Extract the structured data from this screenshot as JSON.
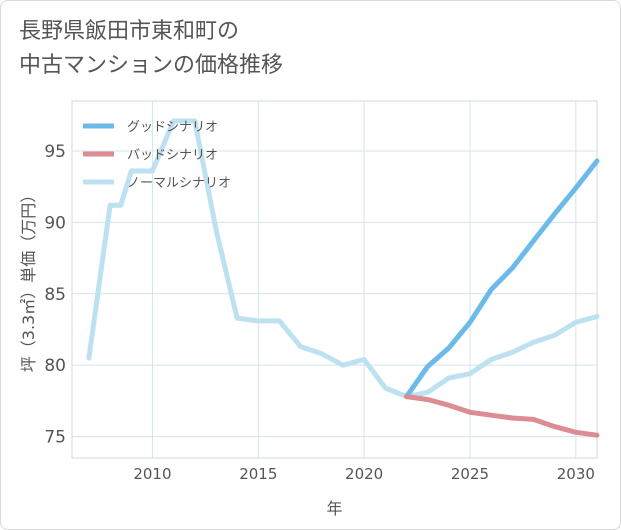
{
  "title_lines": [
    "長野県飯田市東和町の",
    "中古マンションの価格推移"
  ],
  "chart_data": {
    "type": "line",
    "xlabel": "年",
    "ylabel": "坪（3.3㎡）単価（万円）",
    "xlim": [
      2006.2,
      2031
    ],
    "ylim": [
      73.5,
      98.5
    ],
    "xticks": [
      2010,
      2015,
      2020,
      2025,
      2030
    ],
    "yticks": [
      75,
      80,
      85,
      90,
      95
    ],
    "grid": true,
    "legend_position": "top-left",
    "series": [
      {
        "name": "グッドシナリオ",
        "color": "#6bbaea",
        "width": 5,
        "points": [
          [
            2022,
            77.8
          ],
          [
            2023,
            79.9
          ],
          [
            2024,
            81.2
          ],
          [
            2025,
            83.0
          ],
          [
            2026,
            85.3
          ],
          [
            2027,
            86.8
          ],
          [
            2028,
            88.7
          ],
          [
            2029,
            90.6
          ],
          [
            2030,
            92.4
          ],
          [
            2031,
            94.3
          ]
        ]
      },
      {
        "name": "バッドシナリオ",
        "color": "#dd8c93",
        "width": 5,
        "points": [
          [
            2022,
            77.8
          ],
          [
            2023,
            77.6
          ],
          [
            2024,
            77.2
          ],
          [
            2025,
            76.7
          ],
          [
            2026,
            76.5
          ],
          [
            2027,
            76.3
          ],
          [
            2028,
            76.2
          ],
          [
            2029,
            75.7
          ],
          [
            2030,
            75.3
          ],
          [
            2031,
            75.1
          ]
        ]
      },
      {
        "name": "ノーマルシナリオ",
        "color": "#bde1f0",
        "width": 5,
        "points": [
          [
            2007,
            80.5
          ],
          [
            2008,
            91.2
          ],
          [
            2008.5,
            91.2
          ],
          [
            2009,
            93.6
          ],
          [
            2010,
            93.6
          ],
          [
            2011,
            97.1
          ],
          [
            2012,
            97.1
          ],
          [
            2013,
            89.5
          ],
          [
            2014,
            83.3
          ],
          [
            2015,
            83.1
          ],
          [
            2016,
            83.1
          ],
          [
            2017,
            81.3
          ],
          [
            2018,
            80.8
          ],
          [
            2019,
            80.0
          ],
          [
            2020,
            80.4
          ],
          [
            2021,
            78.4
          ],
          [
            2022,
            77.8
          ],
          [
            2023,
            78.1
          ],
          [
            2024,
            79.1
          ],
          [
            2025,
            79.4
          ],
          [
            2026,
            80.4
          ],
          [
            2027,
            80.9
          ],
          [
            2028,
            81.6
          ],
          [
            2029,
            82.1
          ],
          [
            2030,
            83.0
          ],
          [
            2031,
            83.4
          ]
        ]
      }
    ]
  }
}
